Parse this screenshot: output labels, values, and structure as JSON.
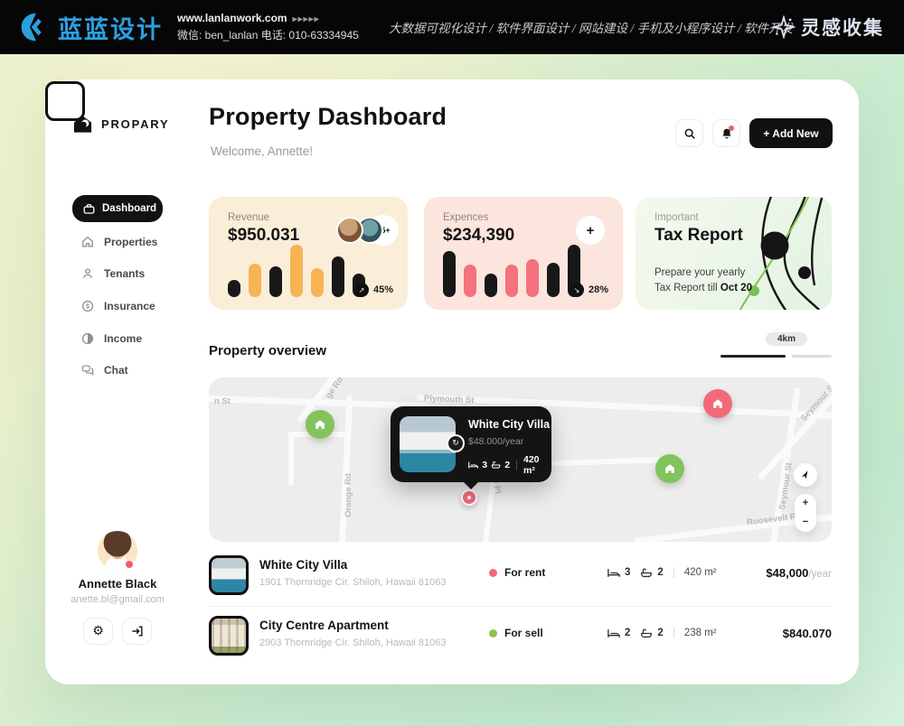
{
  "topbar": {
    "brand": "蓝蓝设计",
    "site": "www.lanlanwork.com",
    "site_arrows": "▸▸▸▸▸",
    "contact": "微信:  ben_lanlan    电话:  010-63334945",
    "services": "大数据可视化设计  /  软件界面设计  /  网站建设  /  手机及小程序设计  /  软件开发",
    "collection": "灵感收集"
  },
  "sidebar": {
    "logo": "PROPARY",
    "items": [
      {
        "label": "Dashboard",
        "active": true
      },
      {
        "label": "Properties",
        "active": false
      },
      {
        "label": "Tenants",
        "active": false
      },
      {
        "label": "Insurance",
        "active": false
      },
      {
        "label": "Income",
        "active": false
      },
      {
        "label": "Chat",
        "active": false
      }
    ],
    "profile": {
      "name": "Annette Black",
      "email": "anette.bl@gmail.com"
    }
  },
  "header": {
    "title": "Property Dashboard",
    "subtitle": "Welcome, Annette!",
    "add_new_label": "+ Add New"
  },
  "cards": {
    "revenue": {
      "label": "Revenue",
      "value": "$950.031",
      "avatars_badge": "25+",
      "percent": "45%"
    },
    "expenses": {
      "label": "Expences",
      "value": "$234,390",
      "plus_label": "+",
      "percent": "28%"
    },
    "tax": {
      "label": "Important",
      "title": "Tax Report",
      "line1": "Prepare your yearly",
      "line2": "Tax Report till",
      "date": "Oct 20"
    }
  },
  "overview": {
    "title": "Property overview",
    "slider_label": "4km"
  },
  "map": {
    "streets": [
      {
        "label": "n St"
      },
      {
        "label": "Plymouth St"
      },
      {
        "label": "ge Rd"
      },
      {
        "label": "Orange Rd"
      },
      {
        "label": "Wilde Pl"
      },
      {
        "label": "Seymour St"
      },
      {
        "label": "Seymour St"
      },
      {
        "label": "Roosevelt Pl"
      }
    ],
    "tooltip": {
      "title": "White City Villa",
      "price": "$48.000/year",
      "beds": "3",
      "baths": "2",
      "area": "420 m²"
    },
    "controls": {
      "zoom_in": "+",
      "zoom_out": "−"
    }
  },
  "properties": [
    {
      "name": "White City Villa",
      "address": "1901 Thornridge Cir. Shiloh, Hawaii 81063",
      "status": "For rent",
      "status_color": "#f2697a",
      "beds": "3",
      "baths": "2",
      "area": "420 m²",
      "price": "$48,000",
      "price_suffix": "/year"
    },
    {
      "name": "City Centre Apartment",
      "address": "2903 Thornridge Cir. Shiloh, Hawaii 81063",
      "status": "For sell",
      "status_color": "#8bc34a",
      "beds": "2",
      "baths": "2",
      "area": "238 m²",
      "price": "$840.070",
      "price_suffix": ""
    }
  ],
  "chart_data": [
    {
      "type": "bar",
      "title": "Revenue mini chart",
      "values": [
        33,
        64,
        58,
        100,
        55,
        78,
        45
      ],
      "colors": [
        "#181818",
        "#f6b454",
        "#181818",
        "#f6b454",
        "#f6b454",
        "#181818",
        "#181818"
      ]
    },
    {
      "type": "bar",
      "title": "Expences mini chart",
      "values": [
        88,
        62,
        45,
        62,
        72,
        65,
        100
      ],
      "colors": [
        "#181818",
        "#f4717d",
        "#181818",
        "#f4717d",
        "#f4717d",
        "#181818",
        "#181818"
      ]
    }
  ],
  "colors": {
    "accent_orange": "#f6b454",
    "accent_pink": "#f4717d",
    "marker_green": "#82c45c",
    "marker_red": "#f2697a"
  }
}
